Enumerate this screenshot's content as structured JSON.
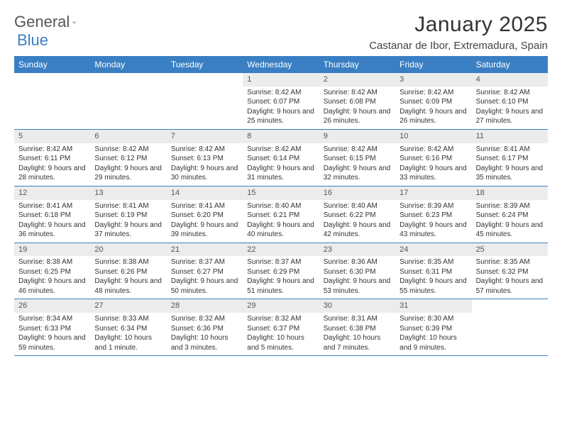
{
  "logo": {
    "text1": "General",
    "text2": "Blue"
  },
  "title": "January 2025",
  "location": "Castanar de Ibor, Extremadura, Spain",
  "colors": {
    "accent": "#3a7fc4",
    "headerText": "#ffffff",
    "dayBar": "#ececec",
    "bodyText": "#333333"
  },
  "dayNames": [
    "Sunday",
    "Monday",
    "Tuesday",
    "Wednesday",
    "Thursday",
    "Friday",
    "Saturday"
  ],
  "weeks": [
    [
      null,
      null,
      null,
      {
        "n": "1",
        "sr": "8:42 AM",
        "ss": "6:07 PM",
        "dl": "9 hours and 25 minutes."
      },
      {
        "n": "2",
        "sr": "8:42 AM",
        "ss": "6:08 PM",
        "dl": "9 hours and 26 minutes."
      },
      {
        "n": "3",
        "sr": "8:42 AM",
        "ss": "6:09 PM",
        "dl": "9 hours and 26 minutes."
      },
      {
        "n": "4",
        "sr": "8:42 AM",
        "ss": "6:10 PM",
        "dl": "9 hours and 27 minutes."
      }
    ],
    [
      {
        "n": "5",
        "sr": "8:42 AM",
        "ss": "6:11 PM",
        "dl": "9 hours and 28 minutes."
      },
      {
        "n": "6",
        "sr": "8:42 AM",
        "ss": "6:12 PM",
        "dl": "9 hours and 29 minutes."
      },
      {
        "n": "7",
        "sr": "8:42 AM",
        "ss": "6:13 PM",
        "dl": "9 hours and 30 minutes."
      },
      {
        "n": "8",
        "sr": "8:42 AM",
        "ss": "6:14 PM",
        "dl": "9 hours and 31 minutes."
      },
      {
        "n": "9",
        "sr": "8:42 AM",
        "ss": "6:15 PM",
        "dl": "9 hours and 32 minutes."
      },
      {
        "n": "10",
        "sr": "8:42 AM",
        "ss": "6:16 PM",
        "dl": "9 hours and 33 minutes."
      },
      {
        "n": "11",
        "sr": "8:41 AM",
        "ss": "6:17 PM",
        "dl": "9 hours and 35 minutes."
      }
    ],
    [
      {
        "n": "12",
        "sr": "8:41 AM",
        "ss": "6:18 PM",
        "dl": "9 hours and 36 minutes."
      },
      {
        "n": "13",
        "sr": "8:41 AM",
        "ss": "6:19 PM",
        "dl": "9 hours and 37 minutes."
      },
      {
        "n": "14",
        "sr": "8:41 AM",
        "ss": "6:20 PM",
        "dl": "9 hours and 39 minutes."
      },
      {
        "n": "15",
        "sr": "8:40 AM",
        "ss": "6:21 PM",
        "dl": "9 hours and 40 minutes."
      },
      {
        "n": "16",
        "sr": "8:40 AM",
        "ss": "6:22 PM",
        "dl": "9 hours and 42 minutes."
      },
      {
        "n": "17",
        "sr": "8:39 AM",
        "ss": "6:23 PM",
        "dl": "9 hours and 43 minutes."
      },
      {
        "n": "18",
        "sr": "8:39 AM",
        "ss": "6:24 PM",
        "dl": "9 hours and 45 minutes."
      }
    ],
    [
      {
        "n": "19",
        "sr": "8:38 AM",
        "ss": "6:25 PM",
        "dl": "9 hours and 46 minutes."
      },
      {
        "n": "20",
        "sr": "8:38 AM",
        "ss": "6:26 PM",
        "dl": "9 hours and 48 minutes."
      },
      {
        "n": "21",
        "sr": "8:37 AM",
        "ss": "6:27 PM",
        "dl": "9 hours and 50 minutes."
      },
      {
        "n": "22",
        "sr": "8:37 AM",
        "ss": "6:29 PM",
        "dl": "9 hours and 51 minutes."
      },
      {
        "n": "23",
        "sr": "8:36 AM",
        "ss": "6:30 PM",
        "dl": "9 hours and 53 minutes."
      },
      {
        "n": "24",
        "sr": "8:35 AM",
        "ss": "6:31 PM",
        "dl": "9 hours and 55 minutes."
      },
      {
        "n": "25",
        "sr": "8:35 AM",
        "ss": "6:32 PM",
        "dl": "9 hours and 57 minutes."
      }
    ],
    [
      {
        "n": "26",
        "sr": "8:34 AM",
        "ss": "6:33 PM",
        "dl": "9 hours and 59 minutes."
      },
      {
        "n": "27",
        "sr": "8:33 AM",
        "ss": "6:34 PM",
        "dl": "10 hours and 1 minute."
      },
      {
        "n": "28",
        "sr": "8:32 AM",
        "ss": "6:36 PM",
        "dl": "10 hours and 3 minutes."
      },
      {
        "n": "29",
        "sr": "8:32 AM",
        "ss": "6:37 PM",
        "dl": "10 hours and 5 minutes."
      },
      {
        "n": "30",
        "sr": "8:31 AM",
        "ss": "6:38 PM",
        "dl": "10 hours and 7 minutes."
      },
      {
        "n": "31",
        "sr": "8:30 AM",
        "ss": "6:39 PM",
        "dl": "10 hours and 9 minutes."
      },
      null
    ]
  ],
  "labels": {
    "sunrise": "Sunrise:",
    "sunset": "Sunset:",
    "daylight": "Daylight:"
  }
}
